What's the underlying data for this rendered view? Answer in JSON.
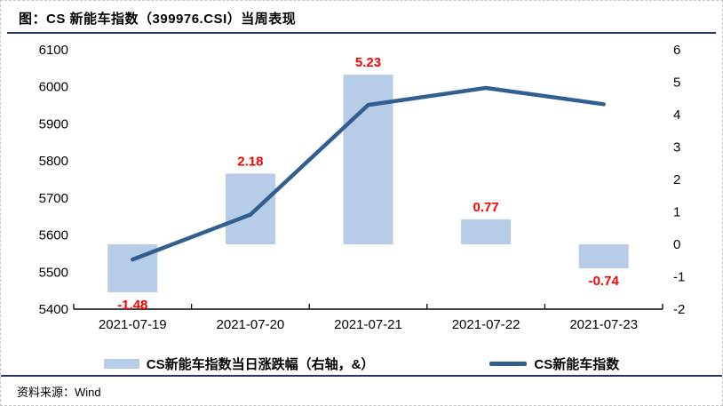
{
  "figure": {
    "title": "图：CS 新能车指数（399976.CSI）当周表现",
    "source_label": "资料来源：Wind",
    "rule_color": "#1f3864",
    "border_color": "#c6c6c6"
  },
  "chart_data": {
    "type": "combo",
    "categories": [
      "2021-07-19",
      "2021-07-20",
      "2021-07-21",
      "2021-07-22",
      "2021-07-23"
    ],
    "series": [
      {
        "name": "CS新能车指数当日涨跌幅（右轴，&）",
        "type": "bar",
        "axis": "right",
        "values": [
          -1.48,
          2.18,
          5.23,
          0.77,
          -0.74
        ],
        "labels": [
          "-1.48",
          "2.18",
          "5.23",
          "0.77",
          "-0.74"
        ],
        "color": "#b7cce6",
        "label_color": "#ff0000"
      },
      {
        "name": "CS新能车指数",
        "type": "line",
        "axis": "left",
        "values": [
          5534,
          5655,
          5951,
          5997,
          5953
        ],
        "color": "#305f90"
      }
    ],
    "left_axis": {
      "min": 5400,
      "max": 6100,
      "step": 100,
      "ticks": [
        6100,
        6000,
        5900,
        5800,
        5700,
        5600,
        5500,
        5400
      ]
    },
    "right_axis": {
      "min": -2,
      "max": 6,
      "step": 1,
      "ticks": [
        6,
        5,
        4,
        3,
        2,
        1,
        0,
        -1,
        -2
      ]
    },
    "grid": false,
    "legend_position": "bottom",
    "axis_line_color": "#000000",
    "tick_label_color": "#000000"
  }
}
